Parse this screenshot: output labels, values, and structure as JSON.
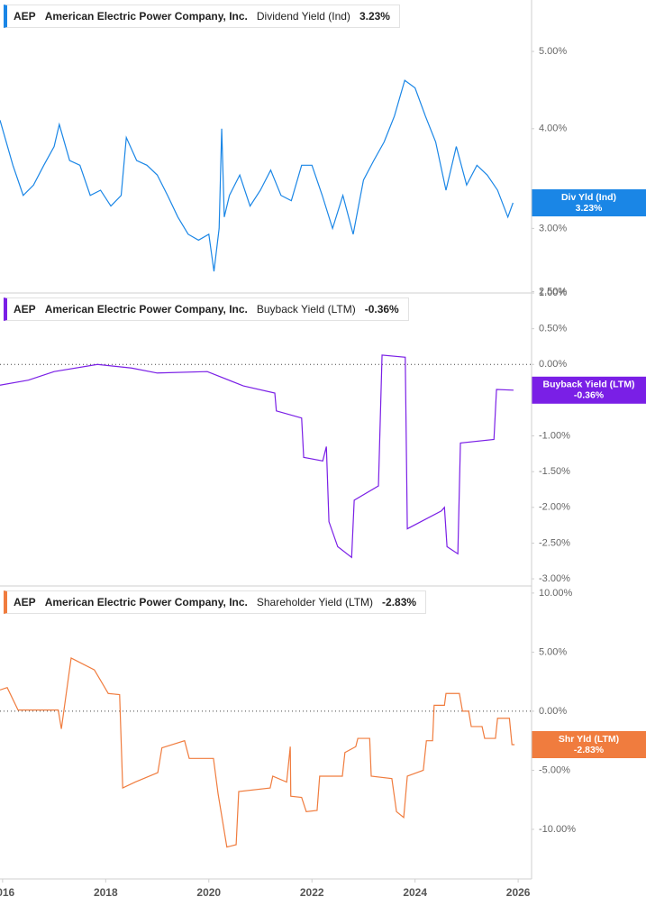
{
  "chart_data": [
    {
      "type": "line",
      "ticker": "AEP",
      "company": "American Electric Power Company, Inc.",
      "tag": "Div Yld (Ind)",
      "last_value": {
        "value": 3.23,
        "label": "3.23%"
      },
      "log_scale": true,
      "xlim": [
        2015.95,
        2026.26
      ],
      "ylim": [
        2.49,
        5.8
      ],
      "yticks": [
        {
          "value": 5,
          "label": "5.00%"
        },
        {
          "value": 4,
          "label": "4.00%"
        },
        {
          "value": 3,
          "label": "3.00%"
        },
        {
          "value": 2.5,
          "label": "2.50%"
        }
      ],
      "x": [
        2015.95,
        2016.2,
        2016.4,
        2016.6,
        2016.8,
        2017.0,
        2017.1,
        2017.3,
        2017.5,
        2017.7,
        2017.9,
        2018.1,
        2018.3,
        2018.4,
        2018.6,
        2018.8,
        2019.0,
        2019.2,
        2019.4,
        2019.6,
        2019.8,
        2020.0,
        2020.1,
        2020.2,
        2020.25,
        2020.3,
        2020.4,
        2020.6,
        2020.8,
        2021.0,
        2021.2,
        2021.4,
        2021.6,
        2021.8,
        2022.0,
        2022.2,
        2022.4,
        2022.6,
        2022.8,
        2023.0,
        2023.2,
        2023.4,
        2023.6,
        2023.8,
        2024.0,
        2024.2,
        2024.4,
        2024.6,
        2024.8,
        2025.0,
        2025.2,
        2025.4,
        2025.6,
        2025.8,
        2025.9
      ],
      "series": [
        {
          "name": "Dividend Yield (Ind)",
          "color": "#1a86e6",
          "values": [
            4.1,
            3.6,
            3.3,
            3.4,
            3.6,
            3.8,
            4.05,
            3.65,
            3.6,
            3.3,
            3.35,
            3.2,
            3.3,
            3.9,
            3.65,
            3.6,
            3.5,
            3.3,
            3.1,
            2.95,
            2.9,
            2.95,
            2.65,
            3.0,
            4.0,
            3.1,
            3.3,
            3.5,
            3.2,
            3.35,
            3.55,
            3.3,
            3.25,
            3.6,
            3.6,
            3.3,
            3.0,
            3.3,
            2.95,
            3.45,
            3.65,
            3.85,
            4.15,
            4.6,
            4.5,
            4.15,
            3.85,
            3.35,
            3.8,
            3.4,
            3.6,
            3.5,
            3.35,
            3.1,
            3.23
          ]
        }
      ]
    },
    {
      "type": "line",
      "ticker": "AEP",
      "company": "American Electric Power Company, Inc.",
      "tag": "Buyback Yield (LTM)",
      "last_value": {
        "value": -0.36,
        "label": "-0.36%"
      },
      "baseline": 0,
      "xlim": [
        2015.95,
        2026.26
      ],
      "ylim": [
        -3.1,
        1.0
      ],
      "yticks": [
        {
          "value": 1,
          "label": "1.00%"
        },
        {
          "value": 0.5,
          "label": "0.50%"
        },
        {
          "value": 0,
          "label": "0.00%"
        },
        {
          "value": -0.5,
          "label": "-0.50%"
        },
        {
          "value": -1,
          "label": "-1.00%"
        },
        {
          "value": -1.5,
          "label": "-1.50%"
        },
        {
          "value": -2,
          "label": "-2.00%"
        },
        {
          "value": -2.5,
          "label": "-2.50%"
        },
        {
          "value": -3,
          "label": "-3.00%"
        }
      ],
      "x": [
        2015.95,
        2016.5,
        2017.0,
        2017.84,
        2018.5,
        2019.0,
        2019.97,
        2020.67,
        2021.28,
        2021.31,
        2021.8,
        2021.84,
        2022.21,
        2022.28,
        2022.33,
        2022.5,
        2022.77,
        2022.82,
        2023.29,
        2023.36,
        2023.81,
        2023.85,
        2024.51,
        2024.57,
        2024.62,
        2024.83,
        2024.88,
        2025.53,
        2025.58,
        2025.91
      ],
      "series": [
        {
          "name": "Buyback Yield (LTM)",
          "color": "#7a1fe6",
          "values": [
            -0.29,
            -0.22,
            -0.1,
            0.0,
            -0.05,
            -0.12,
            -0.1,
            -0.3,
            -0.4,
            -0.65,
            -0.75,
            -1.3,
            -1.35,
            -1.15,
            -2.2,
            -2.55,
            -2.7,
            -1.9,
            -1.7,
            0.13,
            0.1,
            -2.3,
            -2.05,
            -2.0,
            -2.55,
            -2.65,
            -1.1,
            -1.05,
            -0.35,
            -0.36
          ]
        }
      ]
    },
    {
      "type": "line",
      "ticker": "AEP",
      "company": "American Electric Power Company, Inc.",
      "tag": "Shr Yld (LTM)",
      "last_value": {
        "value": -2.83,
        "label": "-2.83%"
      },
      "baseline": 0,
      "xlim": [
        2015.95,
        2026.26
      ],
      "ylim": [
        -14.2,
        10.6
      ],
      "yticks": [
        {
          "value": 10,
          "label": "10.00%"
        },
        {
          "value": 5,
          "label": "5.00%"
        },
        {
          "value": 0,
          "label": "0.00%"
        },
        {
          "value": -5,
          "label": "-5.00%"
        },
        {
          "value": -10,
          "label": "-10.00%"
        }
      ],
      "xticks": [
        2016,
        2018,
        2020,
        2022,
        2024,
        2026
      ],
      "x": [
        2015.95,
        2016.09,
        2016.3,
        2017.08,
        2017.14,
        2017.33,
        2017.78,
        2018.05,
        2018.27,
        2018.33,
        2018.57,
        2019.01,
        2019.09,
        2019.53,
        2019.62,
        2020.09,
        2020.18,
        2020.35,
        2020.53,
        2020.58,
        2021.19,
        2021.24,
        2021.51,
        2021.58,
        2021.59,
        2021.8,
        2021.89,
        2022.1,
        2022.15,
        2022.59,
        2022.64,
        2022.85,
        2022.89,
        2023.12,
        2023.15,
        2023.55,
        2023.64,
        2023.78,
        2023.85,
        2024.16,
        2024.22,
        2024.34,
        2024.37,
        2024.57,
        2024.6,
        2024.86,
        2024.92,
        2025.04,
        2025.09,
        2025.3,
        2025.35,
        2025.56,
        2025.6,
        2025.83,
        2025.88,
        2025.93
      ],
      "series": [
        {
          "name": "Shareholder Yield (LTM)",
          "color": "#f07c3e",
          "values": [
            1.8,
            2.0,
            0.1,
            0.1,
            -1.5,
            4.5,
            3.5,
            1.5,
            1.4,
            -6.5,
            -6,
            -5.2,
            -3.1,
            -2.5,
            -4,
            -4,
            -7,
            -11.5,
            -11.3,
            -6.8,
            -6.5,
            -5.5,
            -6,
            -3,
            -7.2,
            -7.3,
            -8.5,
            -8.4,
            -5.5,
            -5.5,
            -3.5,
            -3.0,
            -2.3,
            -2.3,
            -5.5,
            -5.7,
            -8.5,
            -9,
            -5.5,
            -5,
            -2.5,
            -2.5,
            0.5,
            0.5,
            1.5,
            1.5,
            0.0,
            0.0,
            -1.3,
            -1.3,
            -2.3,
            -2.3,
            -0.6,
            -0.6,
            -2.83,
            -2.83
          ]
        }
      ]
    }
  ]
}
